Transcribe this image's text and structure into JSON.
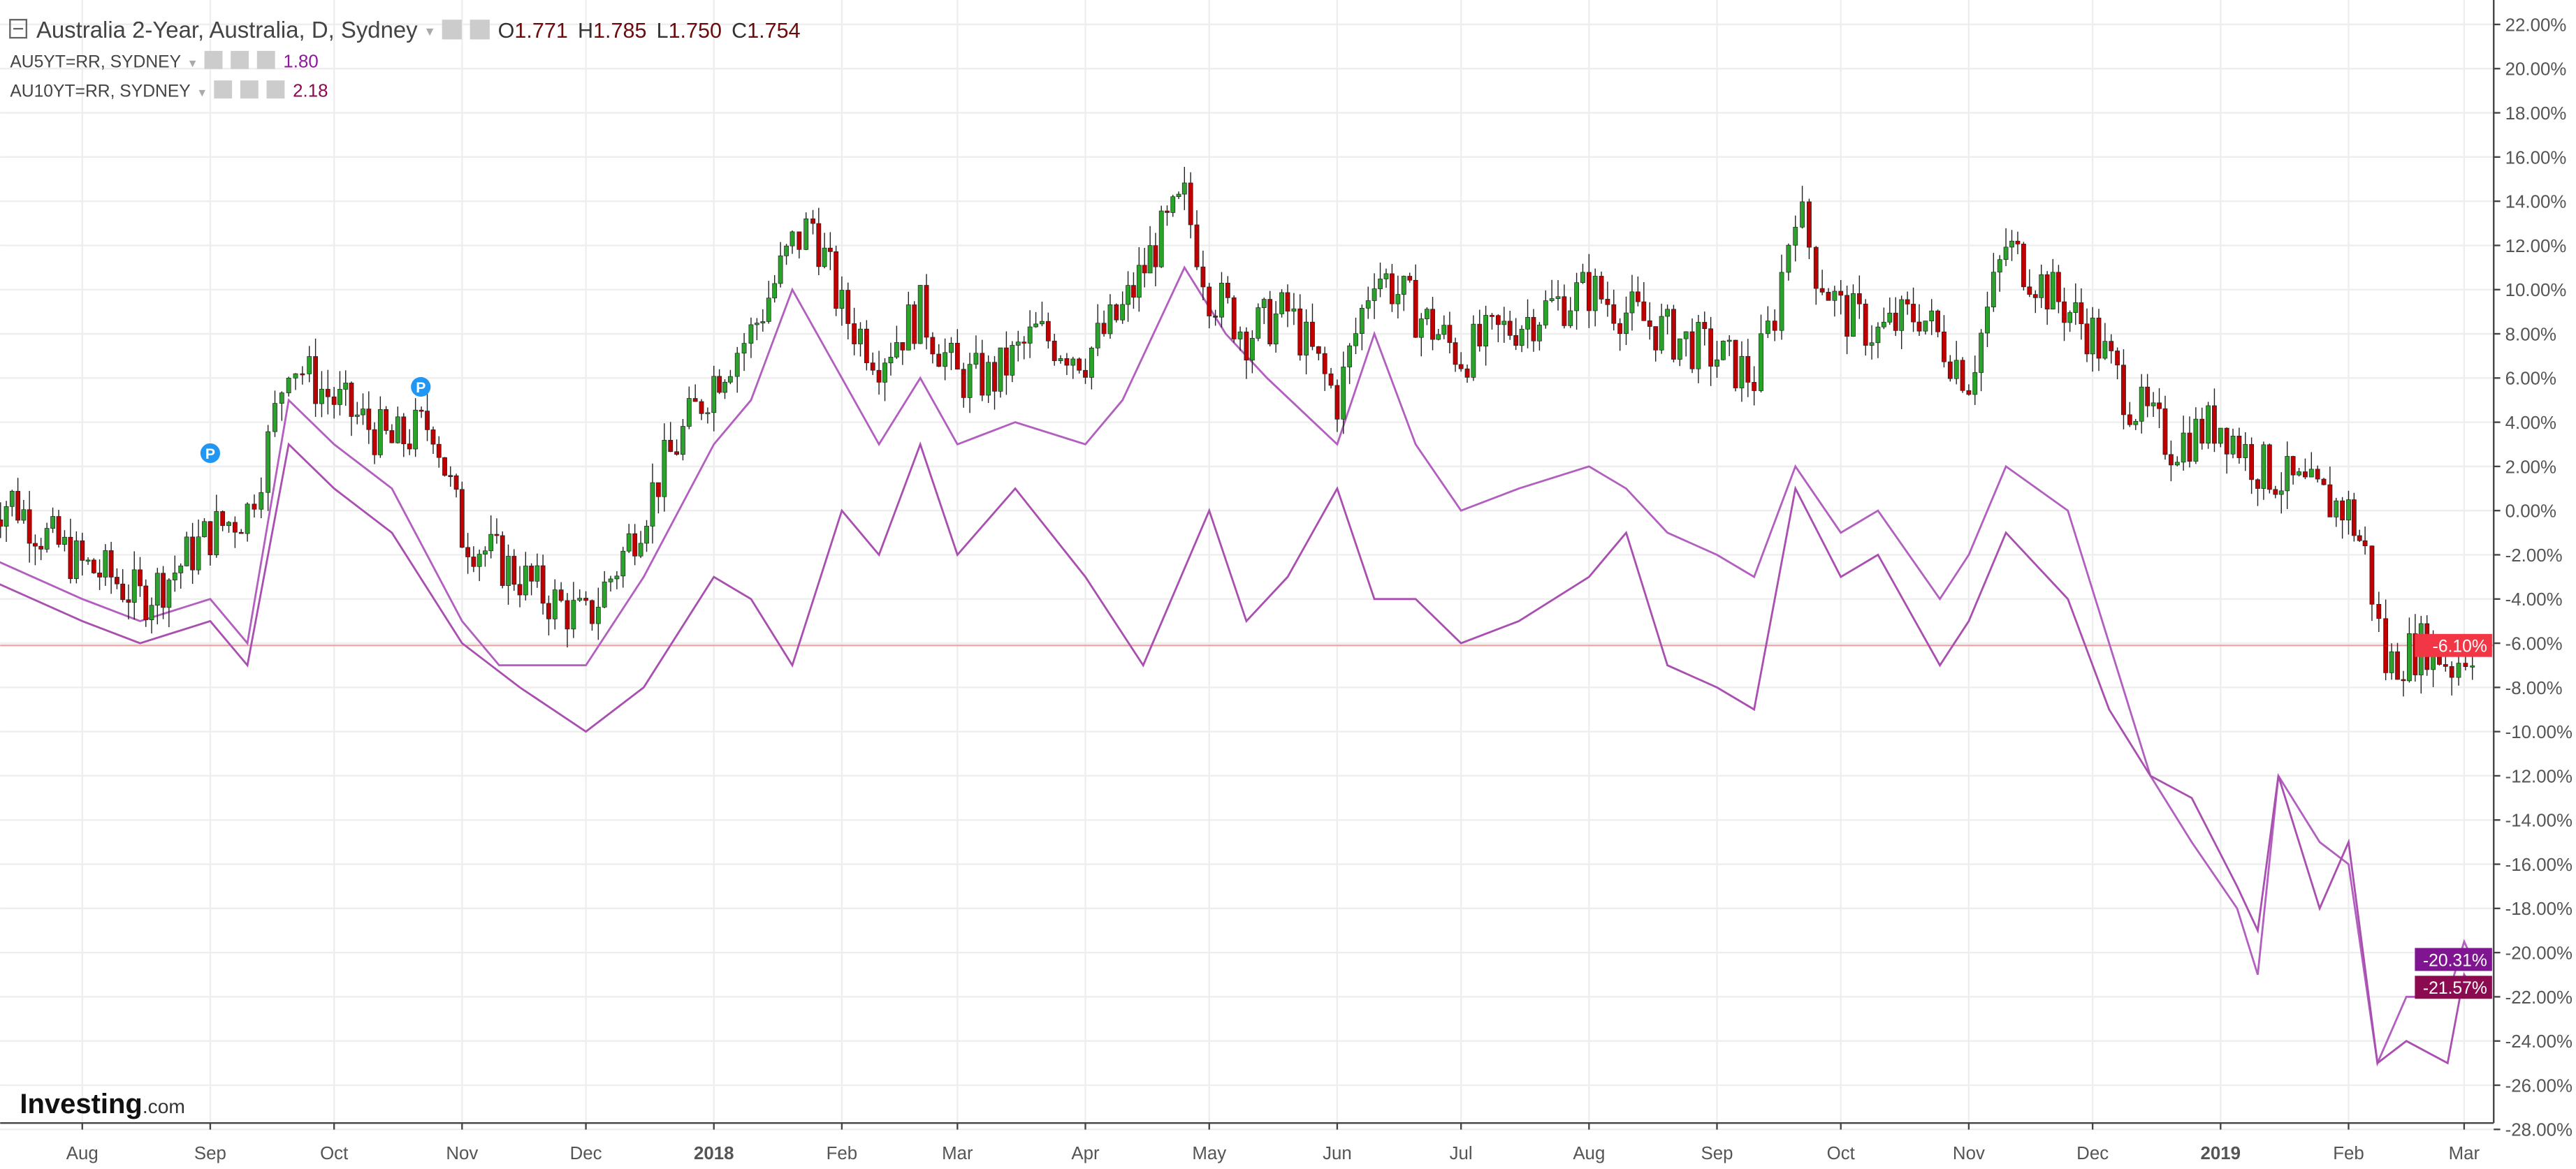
{
  "legend": {
    "main": {
      "title": "Australia 2-Year, Australia, D, Sydney",
      "o_label": "O",
      "o": "1.771",
      "h_label": "H",
      "h": "1.785",
      "l_label": "L",
      "l": "1.750",
      "c_label": "C",
      "c": "1.754"
    },
    "series": [
      {
        "title": "AU5YT=RR, SYDNEY",
        "value": "1.80",
        "color": "#8e1a9b"
      },
      {
        "title": "AU10YT=RR, SYDNEY",
        "value": "2.18",
        "color": "#8b0a50"
      }
    ]
  },
  "brand": {
    "logo": "Investing.com"
  },
  "colors": {
    "up": "#29a329",
    "down": "#c00000",
    "line5y": "#b25fc0",
    "line10y": "#a94fb0",
    "hline": "#f7a1a1",
    "label_last": "#f23645"
  },
  "chart_data": {
    "type": "candlestick+line",
    "yaxis": {
      "unit": "%",
      "range": [
        -28,
        22
      ],
      "ticks": [
        "22.00%",
        "20.00%",
        "18.00%",
        "16.00%",
        "14.00%",
        "12.00%",
        "10.00%",
        "8.00%",
        "6.00%",
        "4.00%",
        "2.00%",
        "0.00%",
        "-2.00%",
        "-4.00%",
        "-6.00%",
        "-8.00%",
        "-10.00%",
        "-12.00%",
        "-14.00%",
        "-16.00%",
        "-18.00%",
        "-20.00%",
        "-22.00%",
        "-24.00%",
        "-26.00%",
        "-28.00%"
      ]
    },
    "xaxis": {
      "ticks": [
        {
          "label": "Aug",
          "date": "2017-08-01"
        },
        {
          "label": "Sep",
          "date": "2017-09-01"
        },
        {
          "label": "Oct",
          "date": "2017-10-01"
        },
        {
          "label": "Nov",
          "date": "2017-11-01"
        },
        {
          "label": "Dec",
          "date": "2017-12-01"
        },
        {
          "label": "2018",
          "date": "2018-01-01",
          "bold": true
        },
        {
          "label": "Feb",
          "date": "2018-02-01"
        },
        {
          "label": "Mar",
          "date": "2018-03-01"
        },
        {
          "label": "Apr",
          "date": "2018-04-01"
        },
        {
          "label": "May",
          "date": "2018-05-01"
        },
        {
          "label": "Jun",
          "date": "2018-06-01"
        },
        {
          "label": "Jul",
          "date": "2018-07-01"
        },
        {
          "label": "Aug",
          "date": "2018-08-01"
        },
        {
          "label": "Sep",
          "date": "2018-09-01"
        },
        {
          "label": "Oct",
          "date": "2018-10-01"
        },
        {
          "label": "Nov",
          "date": "2018-11-01"
        },
        {
          "label": "Dec",
          "date": "2018-12-01"
        },
        {
          "label": "2019",
          "date": "2019-01-01",
          "bold": true
        },
        {
          "label": "Feb",
          "date": "2019-02-01"
        },
        {
          "label": "Mar",
          "date": "2019-03-01"
        }
      ]
    },
    "grid": true,
    "horizontal_line": {
      "value": -6.1,
      "label": "-6.10%"
    },
    "last_labels": [
      {
        "value": -20.31,
        "label": "-20.31%",
        "color": "#7f1590"
      },
      {
        "value": -21.57,
        "label": "-21.57%",
        "color": "#8b0a50"
      }
    ],
    "markers": [
      {
        "date": "2017-09-01",
        "value": 2.6,
        "label": "P"
      },
      {
        "date": "2017-10-22",
        "value": 5.6,
        "label": "P"
      }
    ],
    "candles_close": [
      [
        "2017-07-08",
        0
      ],
      [
        "2017-07-15",
        0.5
      ],
      [
        "2017-07-22",
        -1
      ],
      [
        "2017-08-01",
        -2.5
      ],
      [
        "2017-08-08",
        -3
      ],
      [
        "2017-08-15",
        -4
      ],
      [
        "2017-08-22",
        -3
      ],
      [
        "2017-09-01",
        -1
      ],
      [
        "2017-09-10",
        0
      ],
      [
        "2017-09-15",
        3
      ],
      [
        "2017-09-20",
        7
      ],
      [
        "2017-09-25",
        6
      ],
      [
        "2017-10-01",
        5
      ],
      [
        "2017-10-08",
        4
      ],
      [
        "2017-10-15",
        3
      ],
      [
        "2017-10-25",
        4
      ],
      [
        "2017-11-01",
        -1
      ],
      [
        "2017-11-08",
        -2
      ],
      [
        "2017-11-15",
        -3
      ],
      [
        "2017-11-22",
        -4
      ],
      [
        "2017-12-01",
        -5
      ],
      [
        "2017-12-10",
        -2
      ],
      [
        "2017-12-20",
        2
      ],
      [
        "2018-01-01",
        6
      ],
      [
        "2018-01-05",
        7
      ],
      [
        "2018-01-10",
        8
      ],
      [
        "2018-01-20",
        12
      ],
      [
        "2018-01-25",
        13
      ],
      [
        "2018-02-01",
        9
      ],
      [
        "2018-02-10",
        7
      ],
      [
        "2018-02-20",
        9
      ],
      [
        "2018-03-01",
        6
      ],
      [
        "2018-03-10",
        6
      ],
      [
        "2018-03-20",
        8
      ],
      [
        "2018-04-01",
        7
      ],
      [
        "2018-04-10",
        9
      ],
      [
        "2018-04-18",
        12
      ],
      [
        "2018-04-25",
        14
      ],
      [
        "2018-05-01",
        10
      ],
      [
        "2018-05-10",
        8
      ],
      [
        "2018-05-20",
        9
      ],
      [
        "2018-06-01",
        5
      ],
      [
        "2018-06-10",
        11
      ],
      [
        "2018-06-20",
        9
      ],
      [
        "2018-07-01",
        7
      ],
      [
        "2018-07-10",
        8
      ],
      [
        "2018-07-20",
        9
      ],
      [
        "2018-08-01",
        10
      ],
      [
        "2018-08-10",
        9
      ],
      [
        "2018-08-20",
        8
      ],
      [
        "2018-09-01",
        7
      ],
      [
        "2018-09-10",
        6
      ],
      [
        "2018-09-15",
        9
      ],
      [
        "2018-09-20",
        14
      ],
      [
        "2018-09-25",
        11
      ],
      [
        "2018-10-01",
        9
      ],
      [
        "2018-10-10",
        8
      ],
      [
        "2018-10-20",
        9
      ],
      [
        "2018-11-01",
        6
      ],
      [
        "2018-11-10",
        12
      ],
      [
        "2018-11-20",
        10
      ],
      [
        "2018-12-01",
        8
      ],
      [
        "2018-12-10",
        5
      ],
      [
        "2018-12-20",
        3
      ],
      [
        "2019-01-01",
        4
      ],
      [
        "2019-01-10",
        2
      ],
      [
        "2019-01-20",
        1
      ],
      [
        "2019-02-01",
        0
      ],
      [
        "2019-02-05",
        -2
      ],
      [
        "2019-02-10",
        -7
      ],
      [
        "2019-02-20",
        -6
      ],
      [
        "2019-02-26",
        -7
      ],
      [
        "2019-03-03",
        -6.1
      ]
    ],
    "series": [
      {
        "name": "AU5YT=RR, SYDNEY",
        "points": [
          [
            "2017-07-08",
            -2
          ],
          [
            "2017-08-01",
            -4
          ],
          [
            "2017-08-15",
            -5
          ],
          [
            "2017-09-01",
            -4
          ],
          [
            "2017-09-10",
            -6
          ],
          [
            "2017-09-20",
            5
          ],
          [
            "2017-10-01",
            3
          ],
          [
            "2017-10-15",
            1
          ],
          [
            "2017-11-01",
            -5
          ],
          [
            "2017-11-10",
            -7
          ],
          [
            "2017-12-01",
            -7
          ],
          [
            "2017-12-15",
            -3
          ],
          [
            "2018-01-01",
            3
          ],
          [
            "2018-01-10",
            5
          ],
          [
            "2018-01-20",
            10
          ],
          [
            "2018-02-01",
            6
          ],
          [
            "2018-02-10",
            3
          ],
          [
            "2018-02-20",
            6
          ],
          [
            "2018-03-01",
            3
          ],
          [
            "2018-03-15",
            4
          ],
          [
            "2018-04-01",
            3
          ],
          [
            "2018-04-10",
            5
          ],
          [
            "2018-04-25",
            11
          ],
          [
            "2018-05-05",
            8
          ],
          [
            "2018-05-15",
            6
          ],
          [
            "2018-06-01",
            3
          ],
          [
            "2018-06-10",
            8
          ],
          [
            "2018-06-20",
            3
          ],
          [
            "2018-07-01",
            0
          ],
          [
            "2018-07-15",
            1
          ],
          [
            "2018-08-01",
            2
          ],
          [
            "2018-08-10",
            1
          ],
          [
            "2018-08-20",
            -1
          ],
          [
            "2018-09-01",
            -2
          ],
          [
            "2018-09-10",
            -3
          ],
          [
            "2018-09-20",
            2
          ],
          [
            "2018-10-01",
            -1
          ],
          [
            "2018-10-10",
            0
          ],
          [
            "2018-10-25",
            -4
          ],
          [
            "2018-11-01",
            -2
          ],
          [
            "2018-11-10",
            2
          ],
          [
            "2018-11-25",
            0
          ],
          [
            "2018-12-05",
            -6
          ],
          [
            "2018-12-15",
            -12
          ],
          [
            "2018-12-25",
            -15
          ],
          [
            "2019-01-05",
            -18
          ],
          [
            "2019-01-10",
            -21
          ],
          [
            "2019-01-15",
            -12
          ],
          [
            "2019-01-25",
            -15
          ],
          [
            "2019-02-01",
            -16
          ],
          [
            "2019-02-08",
            -25
          ],
          [
            "2019-02-15",
            -22
          ],
          [
            "2019-02-25",
            -22
          ],
          [
            "2019-03-01",
            -19.5
          ],
          [
            "2019-03-03",
            -20.31
          ]
        ]
      },
      {
        "name": "AU10YT=RR, SYDNEY",
        "points": [
          [
            "2017-07-08",
            -3
          ],
          [
            "2017-08-01",
            -5
          ],
          [
            "2017-08-15",
            -6
          ],
          [
            "2017-09-01",
            -5
          ],
          [
            "2017-09-10",
            -7
          ],
          [
            "2017-09-20",
            3
          ],
          [
            "2017-10-01",
            1
          ],
          [
            "2017-10-15",
            -1
          ],
          [
            "2017-11-01",
            -6
          ],
          [
            "2017-11-15",
            -8
          ],
          [
            "2017-12-01",
            -10
          ],
          [
            "2017-12-15",
            -8
          ],
          [
            "2018-01-01",
            -3
          ],
          [
            "2018-01-10",
            -4
          ],
          [
            "2018-01-20",
            -7
          ],
          [
            "2018-02-01",
            0
          ],
          [
            "2018-02-10",
            -2
          ],
          [
            "2018-02-20",
            3
          ],
          [
            "2018-03-01",
            -2
          ],
          [
            "2018-03-15",
            1
          ],
          [
            "2018-04-01",
            -3
          ],
          [
            "2018-04-15",
            -7
          ],
          [
            "2018-05-01",
            0
          ],
          [
            "2018-05-10",
            -5
          ],
          [
            "2018-05-20",
            -3
          ],
          [
            "2018-06-01",
            1
          ],
          [
            "2018-06-10",
            -4
          ],
          [
            "2018-06-20",
            -4
          ],
          [
            "2018-07-01",
            -6
          ],
          [
            "2018-07-15",
            -5
          ],
          [
            "2018-08-01",
            -3
          ],
          [
            "2018-08-10",
            -1
          ],
          [
            "2018-08-20",
            -7
          ],
          [
            "2018-09-01",
            -8
          ],
          [
            "2018-09-10",
            -9
          ],
          [
            "2018-09-20",
            1
          ],
          [
            "2018-10-01",
            -3
          ],
          [
            "2018-10-10",
            -2
          ],
          [
            "2018-10-25",
            -7
          ],
          [
            "2018-11-01",
            -5
          ],
          [
            "2018-11-10",
            -1
          ],
          [
            "2018-11-25",
            -4
          ],
          [
            "2018-12-05",
            -9
          ],
          [
            "2018-12-15",
            -12
          ],
          [
            "2018-12-25",
            -13
          ],
          [
            "2019-01-05",
            -17
          ],
          [
            "2019-01-10",
            -19
          ],
          [
            "2019-01-15",
            -12
          ],
          [
            "2019-01-25",
            -18
          ],
          [
            "2019-02-01",
            -15
          ],
          [
            "2019-02-08",
            -25
          ],
          [
            "2019-02-15",
            -24
          ],
          [
            "2019-02-25",
            -25
          ],
          [
            "2019-03-01",
            -21
          ],
          [
            "2019-03-03",
            -21.57
          ]
        ]
      }
    ]
  }
}
